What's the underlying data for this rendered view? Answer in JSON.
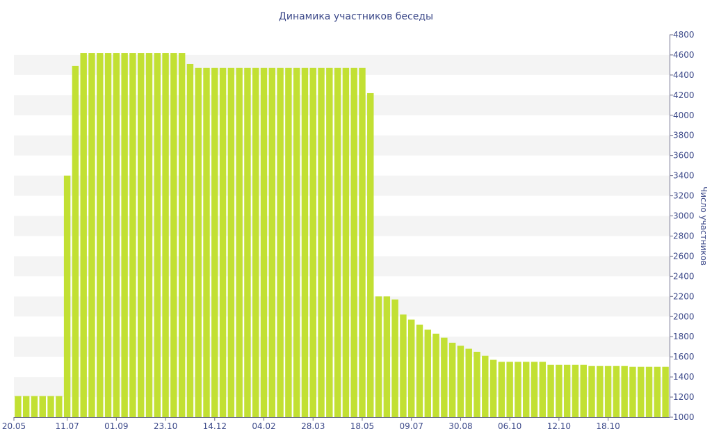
{
  "chart_data": {
    "type": "bar",
    "title": "Динамика участников беседы",
    "xlabel": "",
    "ylabel": "Число участников",
    "ylim": [
      1000,
      4800
    ],
    "yticks": [
      1000,
      1200,
      1400,
      1600,
      1800,
      2000,
      2200,
      2400,
      2600,
      2800,
      3000,
      3200,
      3400,
      3600,
      3800,
      4000,
      4200,
      4400,
      4600,
      4800
    ],
    "y_axis_side": "right",
    "grid": "alternating horizontal bands",
    "colors": {
      "bar": "#c2e033",
      "band": "#f4f4f4",
      "axis": "#6a6a8a",
      "text": "#3d4a8a"
    },
    "x_tick_labels": [
      {
        "label": "20.05",
        "index": 0
      },
      {
        "label": "11.07",
        "index": 6
      },
      {
        "label": "01.09",
        "index": 12
      },
      {
        "label": "23.10",
        "index": 18
      },
      {
        "label": "14.12",
        "index": 24
      },
      {
        "label": "04.02",
        "index": 30
      },
      {
        "label": "28.03",
        "index": 36
      },
      {
        "label": "18.05",
        "index": 42
      },
      {
        "label": "09.07",
        "index": 48
      },
      {
        "label": "30.08",
        "index": 54
      },
      {
        "label": "06.10",
        "index": 60
      },
      {
        "label": "12.10",
        "index": 66
      },
      {
        "label": "18.10",
        "index": 72
      }
    ],
    "values": [
      1210,
      1210,
      1210,
      1210,
      1210,
      1210,
      3400,
      4490,
      4620,
      4620,
      4620,
      4620,
      4620,
      4620,
      4620,
      4620,
      4620,
      4620,
      4620,
      4620,
      4620,
      4510,
      4470,
      4470,
      4470,
      4470,
      4470,
      4470,
      4470,
      4470,
      4470,
      4470,
      4470,
      4470,
      4470,
      4470,
      4470,
      4470,
      4470,
      4470,
      4470,
      4470,
      4470,
      4220,
      2200,
      2200,
      2170,
      2020,
      1970,
      1920,
      1870,
      1830,
      1790,
      1740,
      1710,
      1680,
      1650,
      1610,
      1570,
      1550,
      1550,
      1550,
      1550,
      1550,
      1550,
      1520,
      1520,
      1520,
      1520,
      1520,
      1510,
      1510,
      1510,
      1510,
      1510,
      1500,
      1500,
      1500,
      1500,
      1500
    ]
  }
}
